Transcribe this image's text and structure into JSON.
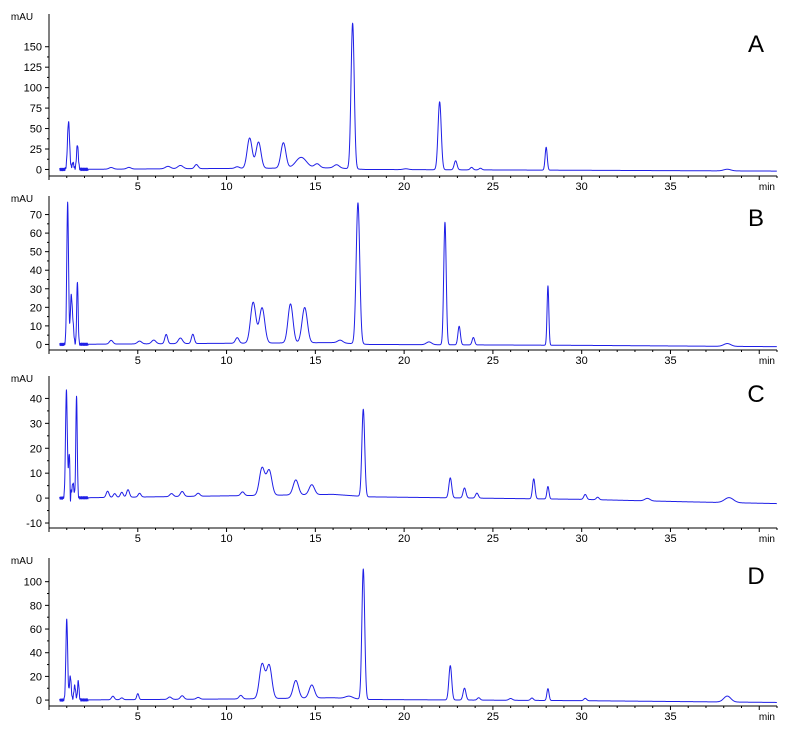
{
  "colors": {
    "trace": "#1f1fe6",
    "axis": "#000000",
    "background": "#ffffff"
  },
  "chart_data": [
    {
      "type": "line",
      "panel_label": "A",
      "ylabel": "mAU",
      "xlabel": "min",
      "xlim": [
        0,
        41
      ],
      "ylim": [
        -8,
        190
      ],
      "xticks": [
        5,
        10,
        15,
        20,
        25,
        30,
        35
      ],
      "yticks": [
        0,
        25,
        50,
        75,
        100,
        125,
        150
      ],
      "baseline": [
        [
          0.6,
          0
        ],
        [
          16,
          2
        ],
        [
          17.8,
          0
        ],
        [
          30,
          -1
        ],
        [
          41,
          -2
        ]
      ],
      "peaks": [
        [
          1.1,
          58,
          0.06
        ],
        [
          1.35,
          8,
          0.05
        ],
        [
          1.6,
          30,
          0.05
        ],
        [
          3.5,
          2,
          0.12
        ],
        [
          4.5,
          2,
          0.12
        ],
        [
          6.7,
          3,
          0.15
        ],
        [
          7.4,
          4,
          0.15
        ],
        [
          8.3,
          5,
          0.1
        ],
        [
          10.6,
          2,
          0.12
        ],
        [
          11.3,
          37,
          0.14
        ],
        [
          11.8,
          32,
          0.14
        ],
        [
          13.2,
          31,
          0.14
        ],
        [
          14.2,
          13,
          0.3
        ],
        [
          15.1,
          5,
          0.15
        ],
        [
          16.2,
          4,
          0.15
        ],
        [
          17.1,
          178,
          0.09
        ],
        [
          20.1,
          1,
          0.15
        ],
        [
          22.0,
          83,
          0.09
        ],
        [
          22.9,
          11,
          0.08
        ],
        [
          23.8,
          3,
          0.08
        ],
        [
          24.3,
          2,
          0.08
        ],
        [
          28.0,
          28,
          0.06
        ],
        [
          38.2,
          2,
          0.2
        ]
      ]
    },
    {
      "type": "line",
      "panel_label": "B",
      "ylabel": "mAU",
      "xlabel": "min",
      "xlim": [
        0,
        41
      ],
      "ylim": [
        -3,
        80
      ],
      "xticks": [
        5,
        10,
        15,
        20,
        25,
        30,
        35
      ],
      "yticks": [
        0,
        10,
        20,
        30,
        40,
        50,
        60,
        70
      ],
      "baseline": [
        [
          0.6,
          0
        ],
        [
          16,
          1
        ],
        [
          18,
          0
        ],
        [
          30,
          -0.5
        ],
        [
          41,
          -1.2
        ]
      ],
      "peaks": [
        [
          1.05,
          76,
          0.05
        ],
        [
          1.25,
          25,
          0.05
        ],
        [
          1.35,
          10,
          0.05
        ],
        [
          1.6,
          34,
          0.04
        ],
        [
          3.5,
          2,
          0.1
        ],
        [
          5.1,
          1.5,
          0.12
        ],
        [
          5.9,
          2,
          0.12
        ],
        [
          6.6,
          5,
          0.08
        ],
        [
          7.4,
          3,
          0.12
        ],
        [
          8.1,
          5,
          0.08
        ],
        [
          10.6,
          3,
          0.1
        ],
        [
          11.5,
          22,
          0.15
        ],
        [
          12.0,
          19,
          0.15
        ],
        [
          13.6,
          21,
          0.14
        ],
        [
          14.4,
          19,
          0.15
        ],
        [
          16.4,
          1.5,
          0.15
        ],
        [
          17.4,
          76,
          0.1
        ],
        [
          21.4,
          1.5,
          0.15
        ],
        [
          22.3,
          66,
          0.07
        ],
        [
          23.1,
          10,
          0.07
        ],
        [
          23.9,
          4,
          0.07
        ],
        [
          28.1,
          32,
          0.05
        ],
        [
          38.2,
          1.5,
          0.2
        ]
      ]
    },
    {
      "type": "line",
      "panel_label": "C",
      "ylabel": "mAU",
      "xlabel": "min",
      "xlim": [
        0,
        41
      ],
      "ylim": [
        -12,
        49
      ],
      "xticks": [
        5,
        10,
        15,
        20,
        25,
        30,
        35
      ],
      "yticks": [
        -10,
        0,
        10,
        20,
        30,
        40
      ],
      "baseline": [
        [
          0.6,
          0
        ],
        [
          11,
          1
        ],
        [
          16,
          1.5
        ],
        [
          18,
          0.5
        ],
        [
          30,
          -0.5
        ],
        [
          36,
          -1.5
        ],
        [
          41,
          -2.2
        ]
      ],
      "peaks": [
        [
          0.98,
          43,
          0.05
        ],
        [
          1.15,
          18,
          0.05
        ],
        [
          1.35,
          6,
          0.05
        ],
        [
          1.55,
          41,
          0.04
        ],
        [
          3.3,
          2.5,
          0.08
        ],
        [
          3.7,
          1.5,
          0.08
        ],
        [
          4.1,
          2,
          0.08
        ],
        [
          4.45,
          3,
          0.08
        ],
        [
          5.1,
          1.5,
          0.08
        ],
        [
          6.9,
          1.2,
          0.1
        ],
        [
          7.5,
          2,
          0.1
        ],
        [
          8.4,
          1.2,
          0.1
        ],
        [
          10.9,
          1.5,
          0.1
        ],
        [
          12.0,
          11,
          0.15
        ],
        [
          12.4,
          10,
          0.15
        ],
        [
          13.9,
          6,
          0.15
        ],
        [
          14.8,
          4,
          0.15
        ],
        [
          17.7,
          35,
          0.08
        ],
        [
          22.6,
          8,
          0.08
        ],
        [
          23.4,
          4,
          0.08
        ],
        [
          24.1,
          2,
          0.08
        ],
        [
          27.3,
          8,
          0.07
        ],
        [
          28.1,
          5,
          0.06
        ],
        [
          30.2,
          2,
          0.08
        ],
        [
          30.9,
          1,
          0.08
        ],
        [
          33.7,
          1,
          0.15
        ],
        [
          38.3,
          2,
          0.25
        ]
      ],
      "dips": [
        [
          1.2,
          -11,
          0.02
        ]
      ]
    },
    {
      "type": "line",
      "panel_label": "D",
      "ylabel": "mAU",
      "xlabel": "min",
      "xlim": [
        0,
        41
      ],
      "ylim": [
        -5,
        120
      ],
      "xticks": [
        5,
        10,
        15,
        20,
        25,
        30,
        35
      ],
      "yticks": [
        0,
        20,
        40,
        60,
        80,
        100
      ],
      "baseline": [
        [
          0.6,
          0
        ],
        [
          11,
          1
        ],
        [
          16,
          2
        ],
        [
          18,
          0.5
        ],
        [
          30,
          -0.5
        ],
        [
          41,
          -2
        ]
      ],
      "peaks": [
        [
          1.0,
          68,
          0.05
        ],
        [
          1.2,
          20,
          0.05
        ],
        [
          1.45,
          12,
          0.05
        ],
        [
          1.65,
          16,
          0.04
        ],
        [
          3.6,
          3,
          0.08
        ],
        [
          4.1,
          1.5,
          0.08
        ],
        [
          5.0,
          5,
          0.06
        ],
        [
          6.8,
          2,
          0.1
        ],
        [
          7.5,
          3,
          0.1
        ],
        [
          8.4,
          1.5,
          0.1
        ],
        [
          10.8,
          3,
          0.1
        ],
        [
          12.0,
          29,
          0.15
        ],
        [
          12.4,
          28,
          0.15
        ],
        [
          13.9,
          15,
          0.15
        ],
        [
          14.8,
          11,
          0.15
        ],
        [
          16.9,
          2,
          0.2
        ],
        [
          17.7,
          110,
          0.08
        ],
        [
          22.6,
          29,
          0.08
        ],
        [
          23.4,
          10,
          0.08
        ],
        [
          24.2,
          2,
          0.08
        ],
        [
          26.0,
          1.5,
          0.1
        ],
        [
          27.2,
          2,
          0.08
        ],
        [
          28.1,
          10,
          0.06
        ],
        [
          30.2,
          2,
          0.08
        ],
        [
          38.2,
          5,
          0.2
        ]
      ]
    }
  ]
}
